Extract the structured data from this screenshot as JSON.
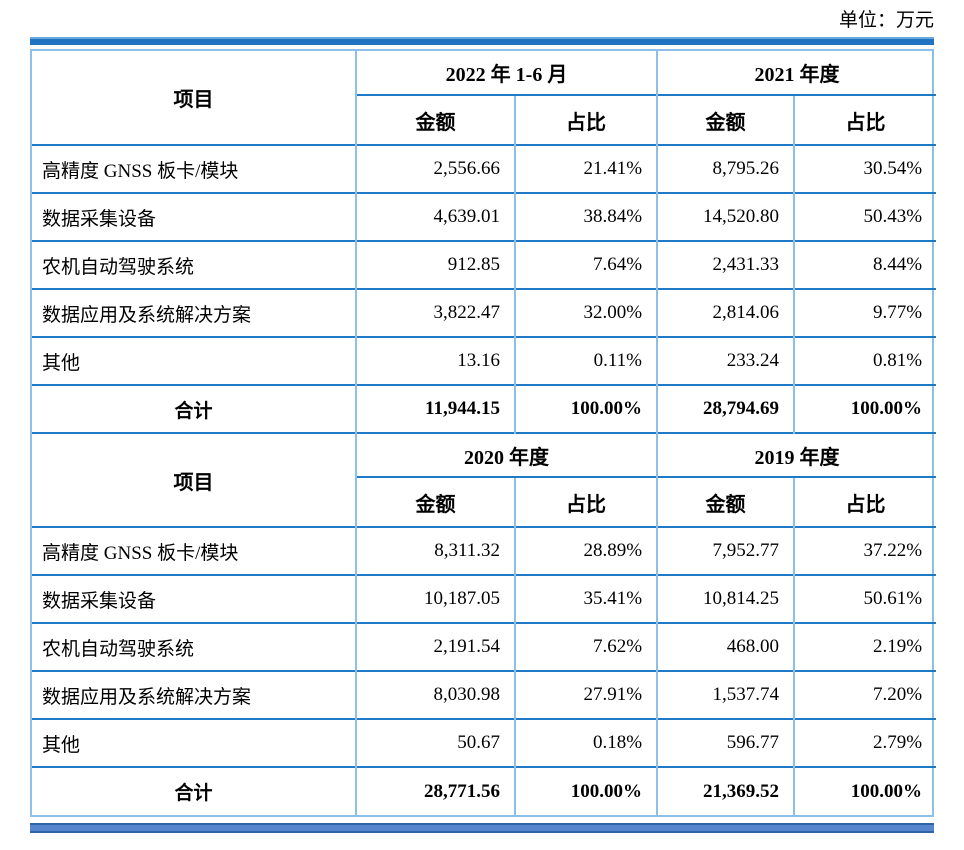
{
  "unit_label": "单位：万元",
  "colors": {
    "border_horizontal": "#1f7ac6",
    "border_vertical": "#8dbfe9",
    "top_bar": "#1e74c0",
    "bottom_bar": "#5585cc"
  },
  "table": {
    "item_header": "项目",
    "amount_header": "金额",
    "ratio_header": "占比",
    "sections": [
      {
        "period_headers": [
          "2022 年 1-6 月",
          "2021 年度"
        ],
        "rows": [
          {
            "item": "高精度 GNSS 板卡/模块",
            "values": [
              "2,556.66",
              "21.41%",
              "8,795.26",
              "30.54%"
            ]
          },
          {
            "item": "数据采集设备",
            "values": [
              "4,639.01",
              "38.84%",
              "14,520.80",
              "50.43%"
            ]
          },
          {
            "item": "农机自动驾驶系统",
            "values": [
              "912.85",
              "7.64%",
              "2,431.33",
              "8.44%"
            ]
          },
          {
            "item": "数据应用及系统解决方案",
            "values": [
              "3,822.47",
              "32.00%",
              "2,814.06",
              "9.77%"
            ]
          },
          {
            "item": "其他",
            "values": [
              "13.16",
              "0.11%",
              "233.24",
              "0.81%"
            ]
          }
        ],
        "total_row": {
          "item": "合计",
          "values": [
            "11,944.15",
            "100.00%",
            "28,794.69",
            "100.00%"
          ]
        }
      },
      {
        "period_headers": [
          "2020 年度",
          "2019 年度"
        ],
        "rows": [
          {
            "item": "高精度 GNSS 板卡/模块",
            "values": [
              "8,311.32",
              "28.89%",
              "7,952.77",
              "37.22%"
            ]
          },
          {
            "item": "数据采集设备",
            "values": [
              "10,187.05",
              "35.41%",
              "10,814.25",
              "50.61%"
            ]
          },
          {
            "item": "农机自动驾驶系统",
            "values": [
              "2,191.54",
              "7.62%",
              "468.00",
              "2.19%"
            ]
          },
          {
            "item": "数据应用及系统解决方案",
            "values": [
              "8,030.98",
              "27.91%",
              "1,537.74",
              "7.20%"
            ]
          },
          {
            "item": "其他",
            "values": [
              "50.67",
              "0.18%",
              "596.77",
              "2.79%"
            ]
          }
        ],
        "total_row": {
          "item": "合计",
          "values": [
            "28,771.56",
            "100.00%",
            "21,369.52",
            "100.00%"
          ]
        }
      }
    ]
  }
}
